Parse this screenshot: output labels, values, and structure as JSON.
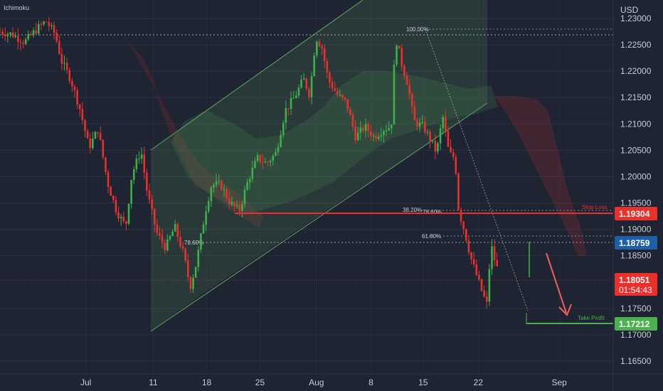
{
  "indicator_label": "Ichimoku",
  "currency": "USD",
  "chart_data": {
    "type": "candlestick",
    "title": "",
    "ylim": [
      1.162,
      1.232
    ],
    "y_ticks": [
      {
        "value": 1.23,
        "label": "1.23000"
      },
      {
        "value": 1.225,
        "label": "1.22500"
      },
      {
        "value": 1.22,
        "label": "1.22000"
      },
      {
        "value": 1.215,
        "label": "1.21500"
      },
      {
        "value": 1.21,
        "label": "1.21000"
      },
      {
        "value": 1.205,
        "label": "1.20500"
      },
      {
        "value": 1.2,
        "label": "1.20000"
      },
      {
        "value": 1.195,
        "label": "1.19500"
      },
      {
        "value": 1.19,
        "label": "1.19000"
      },
      {
        "value": 1.185,
        "label": "1.18500"
      },
      {
        "value": 1.175,
        "label": "1.17500"
      },
      {
        "value": 1.17,
        "label": "1.17000"
      },
      {
        "value": 1.165,
        "label": "1.16500"
      }
    ],
    "x_ticks": [
      {
        "t": 0.14,
        "label": "Jul"
      },
      {
        "t": 0.25,
        "label": "11"
      },
      {
        "t": 0.337,
        "label": "18"
      },
      {
        "t": 0.424,
        "label": "25"
      },
      {
        "t": 0.516,
        "label": "Aug"
      },
      {
        "t": 0.605,
        "label": "8"
      },
      {
        "t": 0.69,
        "label": "15"
      },
      {
        "t": 0.78,
        "label": "22"
      },
      {
        "t": 0.912,
        "label": "Sep"
      }
    ],
    "price_path": [
      [
        0.0,
        1.2275
      ],
      [
        0.02,
        1.227
      ],
      [
        0.04,
        1.2255
      ],
      [
        0.06,
        1.228
      ],
      [
        0.075,
        1.2295
      ],
      [
        0.09,
        1.227
      ],
      [
        0.1,
        1.222
      ],
      [
        0.115,
        1.2185
      ],
      [
        0.13,
        1.213
      ],
      [
        0.145,
        1.2055
      ],
      [
        0.16,
        1.209
      ],
      [
        0.175,
        1.199
      ],
      [
        0.19,
        1.1935
      ],
      [
        0.205,
        1.1905
      ],
      [
        0.215,
        1.2005
      ],
      [
        0.23,
        1.205
      ],
      [
        0.24,
        1.197
      ],
      [
        0.255,
        1.1895
      ],
      [
        0.27,
        1.1865
      ],
      [
        0.285,
        1.1905
      ],
      [
        0.3,
        1.185
      ],
      [
        0.31,
        1.179
      ],
      [
        0.32,
        1.1835
      ],
      [
        0.335,
        1.1935
      ],
      [
        0.345,
        1.1985
      ],
      [
        0.36,
        1.1985
      ],
      [
        0.375,
        1.195
      ],
      [
        0.39,
        1.1935
      ],
      [
        0.405,
        1.1995
      ],
      [
        0.42,
        1.2035
      ],
      [
        0.435,
        1.2025
      ],
      [
        0.45,
        1.2045
      ],
      [
        0.465,
        1.2125
      ],
      [
        0.48,
        1.215
      ],
      [
        0.495,
        1.2185
      ],
      [
        0.505,
        1.2155
      ],
      [
        0.515,
        1.2265
      ],
      [
        0.525,
        1.2245
      ],
      [
        0.535,
        1.2185
      ],
      [
        0.55,
        1.2155
      ],
      [
        0.565,
        1.214
      ],
      [
        0.58,
        1.2075
      ],
      [
        0.595,
        1.2095
      ],
      [
        0.61,
        1.2075
      ],
      [
        0.625,
        1.209
      ],
      [
        0.638,
        1.2095
      ],
      [
        0.645,
        1.2265
      ],
      [
        0.655,
        1.2215
      ],
      [
        0.665,
        1.2175
      ],
      [
        0.675,
        1.2105
      ],
      [
        0.69,
        1.2095
      ],
      [
        0.7,
        1.2075
      ],
      [
        0.712,
        1.2045
      ],
      [
        0.722,
        1.2115
      ],
      [
        0.732,
        1.2045
      ],
      [
        0.742,
        1.2035
      ],
      [
        0.748,
        1.1935
      ],
      [
        0.758,
        1.1895
      ],
      [
        0.768,
        1.1845
      ],
      [
        0.778,
        1.181
      ],
      [
        0.788,
        1.1775
      ],
      [
        0.795,
        1.1755
      ],
      [
        0.8,
        1.1875
      ],
      [
        0.808,
        1.1835
      ],
      [
        0.814,
        1.1815
      ]
    ],
    "price_levels": [
      {
        "label": "1.19304",
        "value": 1.19304,
        "color": "#e8312d",
        "annotation": "Stop Loss"
      },
      {
        "label": "1.18759",
        "value": 1.18759,
        "color": "#1f5fa8",
        "annotation": ""
      },
      {
        "label": "1.18051",
        "value": 1.18051,
        "color": "#e8312d",
        "annotation": "",
        "countdown": "01:54:43"
      },
      {
        "label": "1.17212",
        "value": 1.17212,
        "color": "#4caf50",
        "annotation": "Take Profit"
      }
    ],
    "fib_labels": [
      "100.00%",
      "38.20%",
      "78.60%",
      "61.80%",
      "78.60%"
    ],
    "colors": {
      "up": "#3db04a",
      "down": "#e8312d",
      "background": "#1f2433",
      "channel": "#5fa85f"
    }
  }
}
